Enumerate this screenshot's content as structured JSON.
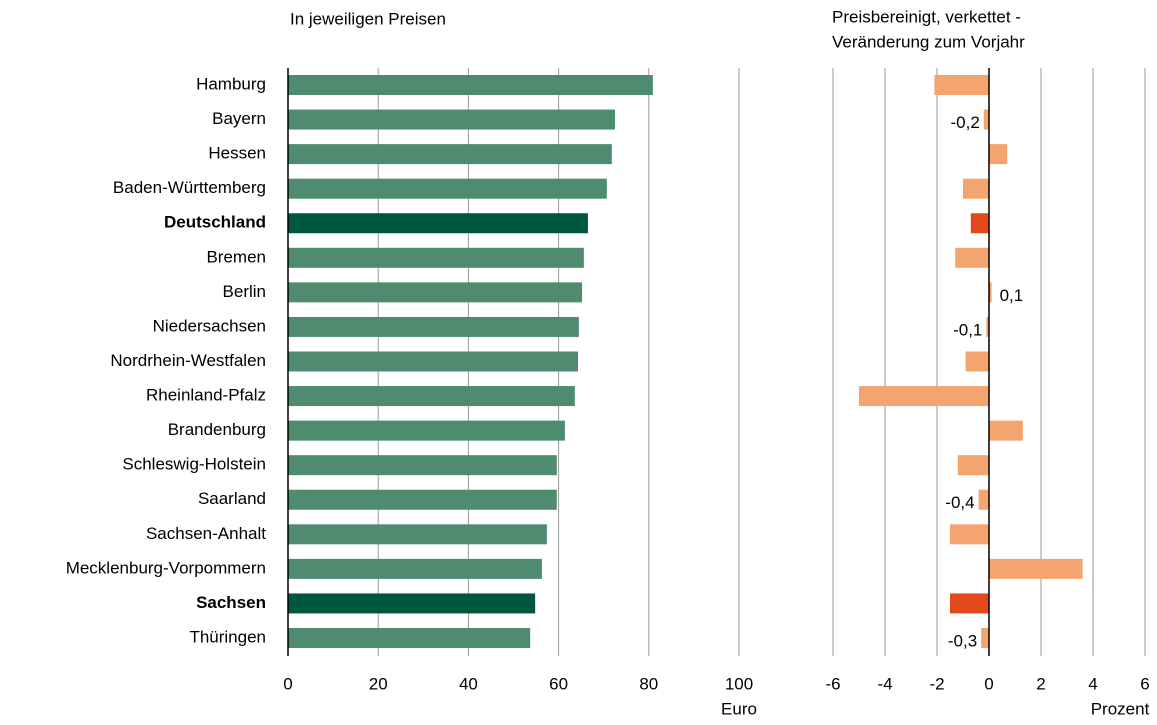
{
  "chart_data": [
    {
      "type": "hbar",
      "title": "In jeweiligen Preisen",
      "categories": [
        "Hamburg",
        "Bayern",
        "Hessen",
        "Baden-Württemberg",
        "Deutschland",
        "Bremen",
        "Berlin",
        "Niedersachsen",
        "Nordrhein-Westfalen",
        "Rheinland-Pfalz",
        "Brandenburg",
        "Schleswig-Holstein",
        "Saarland",
        "Sachsen-Anhalt",
        "Mecklenburg-Vorpommern",
        "Sachsen",
        "Thüringen"
      ],
      "values": [
        80.9,
        72.5,
        71.8,
        70.7,
        66.5,
        65.6,
        65.2,
        64.5,
        64.3,
        63.6,
        61.4,
        59.6,
        59.6,
        57.4,
        56.3,
        54.8,
        53.7
      ],
      "color": "#4e8b6f",
      "highlight_color": "#00573f",
      "highlight_indices": [
        4,
        15
      ],
      "xlim": [
        0,
        100
      ],
      "xticks": [
        0,
        20,
        40,
        60,
        80,
        100
      ],
      "x_label": "Euro",
      "grid": true
    },
    {
      "type": "hbar",
      "title": [
        "Preisbereinigt, verkettet -",
        "Veränderung zum Vorjahr"
      ],
      "values": [
        -2.1,
        -0.2,
        0.7,
        -1.0,
        -0.7,
        -1.3,
        0.1,
        -0.1,
        -0.9,
        -5.0,
        1.3,
        -1.2,
        -0.4,
        -1.5,
        3.6,
        -1.5,
        -0.3
      ],
      "value_labels": [
        null,
        "-0,2",
        null,
        null,
        null,
        null,
        "0,1",
        "-0,1",
        null,
        null,
        null,
        null,
        "-0,4",
        null,
        null,
        null,
        "-0,3"
      ],
      "color": "#f4a46e",
      "highlight_color": "#e24a1b",
      "highlight_indices": [
        4,
        15
      ],
      "xlim": [
        -6,
        6
      ],
      "xticks": [
        -6,
        -4,
        -2,
        0,
        2,
        4,
        6
      ],
      "x_label": "Prozent",
      "grid": true
    }
  ]
}
